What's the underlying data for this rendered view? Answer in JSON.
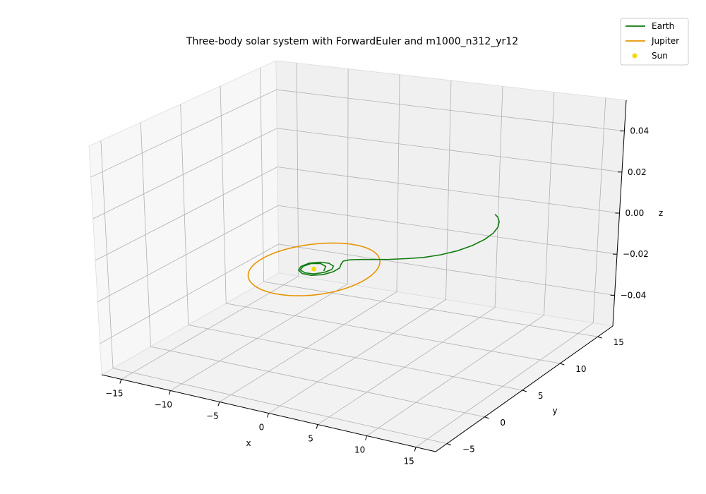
{
  "chart_data": {
    "type": "line",
    "projection": "3d",
    "title": "Three-body solar system with ForwardEuler and m1000_n312_yr12",
    "xlabel": "x",
    "ylabel": "y",
    "zlabel": "z",
    "xlim": [
      -17,
      17
    ],
    "ylim": [
      -6.5,
      17
    ],
    "zlim": [
      -0.055,
      0.055
    ],
    "x_ticks": [
      "−15",
      "−10",
      "−5",
      "0",
      "5",
      "10",
      "15"
    ],
    "y_ticks": [
      "−5",
      "0",
      "5",
      "10",
      "15"
    ],
    "z_ticks": [
      "−0.04",
      "−0.02",
      "0.00",
      "0.02",
      "0.04"
    ],
    "x_tick_values": [
      -15,
      -10,
      -5,
      0,
      5,
      10,
      15
    ],
    "y_tick_values": [
      -5,
      0,
      5,
      10,
      15
    ],
    "z_tick_values": [
      -0.04,
      -0.02,
      0,
      0.02,
      0.04
    ],
    "grid": true,
    "legend_position": "top-right",
    "series": [
      {
        "name": "Earth",
        "kind": "line",
        "color": "#0f7a0f",
        "description": "Spiral orbit starting near the Sun (x≈1, y≈0) and drifting outward to about x≈7, y≈14",
        "x": [
          1.0,
          0.55,
          -0.2,
          -0.9,
          -1.15,
          -0.9,
          -0.2,
          0.6,
          1.2,
          1.4,
          1.1,
          0.4,
          -0.4,
          -1.1,
          -1.3,
          -1.0,
          -0.3,
          0.6,
          1.4,
          1.8,
          1.8,
          1.4,
          1.2,
          1.5,
          2.3,
          3.3,
          4.5,
          5.7,
          6.9,
          7.9,
          8.7,
          9.2,
          9.4,
          9.3,
          8.9,
          8.3,
          7.6,
          7.0
        ],
        "y": [
          0.0,
          0.8,
          1.1,
          0.8,
          0.1,
          -0.6,
          -0.9,
          -0.8,
          -0.2,
          0.5,
          1.1,
          1.4,
          1.3,
          0.8,
          0.0,
          -0.7,
          -1.1,
          -1.1,
          -0.6,
          0.2,
          1.0,
          1.7,
          2.2,
          2.6,
          3.0,
          3.4,
          3.9,
          4.5,
          5.2,
          6.1,
          7.2,
          8.4,
          9.7,
          10.9,
          12.0,
          12.9,
          13.6,
          14.0
        ],
        "z": [
          0,
          0,
          0,
          0,
          0,
          0,
          0,
          0,
          0,
          0,
          0,
          0,
          0,
          0,
          0,
          0,
          0,
          0,
          0,
          0,
          0,
          0,
          0,
          0,
          0,
          0,
          0,
          0,
          0,
          0,
          0,
          0,
          0,
          0,
          0,
          0,
          0,
          0
        ]
      },
      {
        "name": "Jupiter",
        "kind": "line",
        "color": "#e69500",
        "description": "Near-circular orbit of radius ≈ 5.2 around the Sun",
        "center": [
          0,
          0,
          0
        ],
        "radius": 5.2,
        "z": 0
      },
      {
        "name": "Sun",
        "kind": "scatter",
        "color": "#f5d90a",
        "x": [
          0
        ],
        "y": [
          0
        ],
        "z": [
          0
        ]
      }
    ]
  }
}
